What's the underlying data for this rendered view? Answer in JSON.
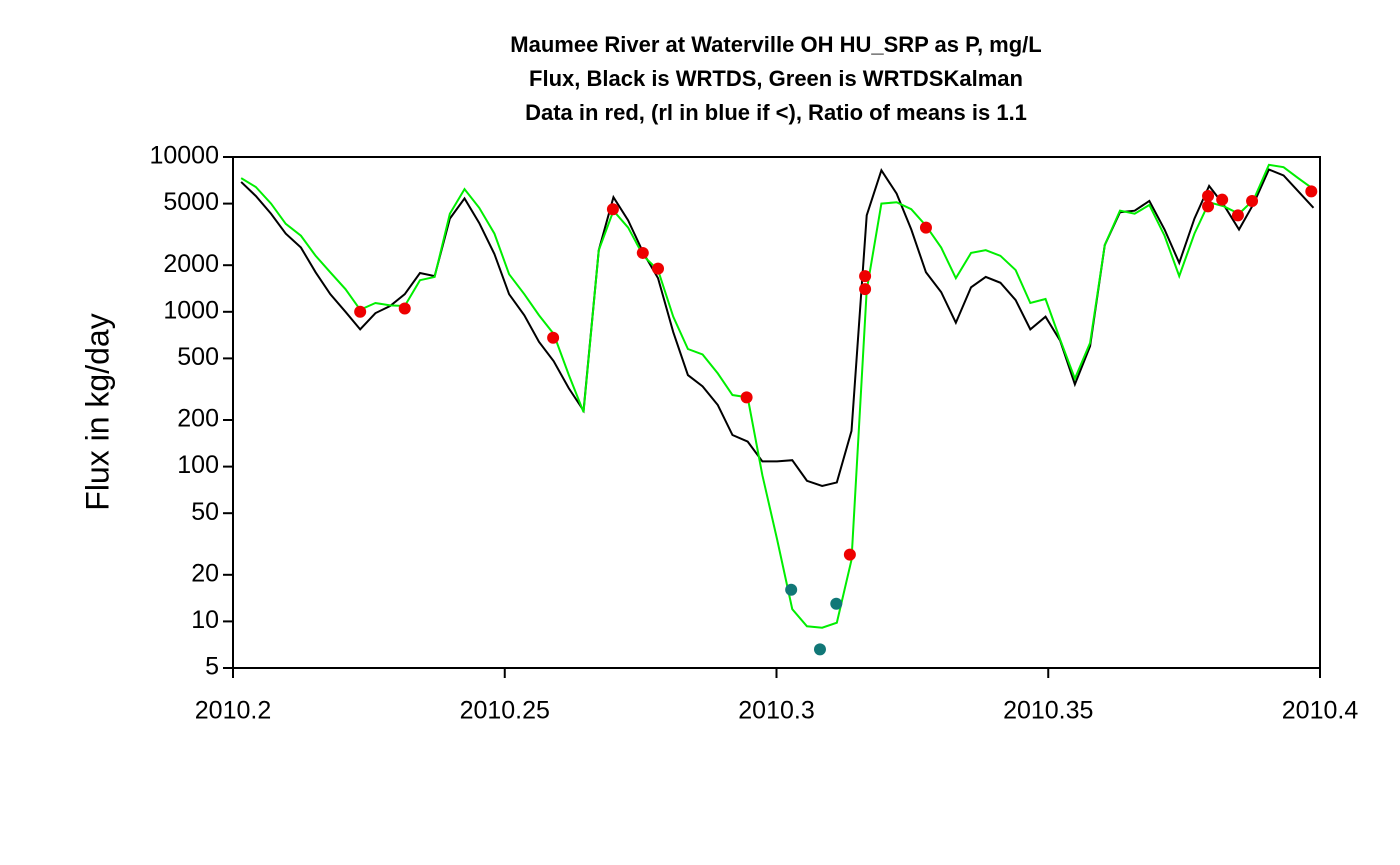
{
  "chart_data": {
    "type": "line",
    "title": [
      "Maumee River at Waterville OH HU_SRP as P, mg/L",
      "Flux, Black is WRTDS, Green is WRTDSKalman",
      "Data in red, (rl in blue if <), Ratio of means is 1.1"
    ],
    "y_label": "Flux in kg/day",
    "ylog": true,
    "xlim": [
      2010.2,
      2010.4
    ],
    "xticks": [
      2010.2,
      2010.25,
      2010.3,
      2010.35,
      2010.4
    ],
    "ylim": [
      5,
      10000
    ],
    "yticks": [
      5,
      10,
      20,
      50,
      100,
      200,
      500,
      1000,
      2000,
      5000,
      10000
    ],
    "series": [
      {
        "name": "WRTDS",
        "type": "line",
        "color": "#000000",
        "x": [
          2010.2015,
          2010.2042,
          2010.207,
          2010.2097,
          2010.2125,
          2010.2152,
          2010.2179,
          2010.2207,
          2010.2234,
          2010.2262,
          2010.2289,
          2010.2316,
          2010.2344,
          2010.2371,
          2010.2399,
          2010.2426,
          2010.2453,
          2010.2481,
          2010.2508,
          2010.2536,
          2010.2563,
          2010.259,
          2010.2618,
          2010.2645,
          2010.2673,
          2010.27,
          2010.2727,
          2010.2755,
          2010.2782,
          2010.281,
          2010.2837,
          2010.2864,
          2010.2892,
          2010.2919,
          2010.2947,
          2010.2974,
          2010.3001,
          2010.3029,
          2010.3056,
          2010.3084,
          2010.3111,
          2010.3138,
          2010.3166,
          2010.3193,
          2010.3221,
          2010.3248,
          2010.3275,
          2010.3303,
          2010.333,
          2010.3358,
          2010.3385,
          2010.3412,
          2010.344,
          2010.3467,
          2010.3495,
          2010.3522,
          2010.3549,
          2010.3577,
          2010.3604,
          2010.3632,
          2010.3659,
          2010.3686,
          2010.3714,
          2010.3741,
          2010.3769,
          2010.3796,
          2010.3823,
          2010.3851,
          2010.3878,
          2010.3906,
          2010.3933,
          2010.396,
          2010.3988
        ],
        "values": [
          6900,
          5600,
          4300,
          3200,
          2600,
          1800,
          1300,
          1000,
          770,
          980,
          1090,
          1300,
          1780,
          1700,
          4000,
          5400,
          3750,
          2360,
          1300,
          950,
          640,
          480,
          320,
          230,
          2500,
          5500,
          3900,
          2400,
          1650,
          740,
          390,
          330,
          250,
          160,
          145,
          108,
          108,
          110,
          81,
          75,
          79,
          170,
          4200,
          8200,
          5800,
          3400,
          1800,
          1340,
          850,
          1440,
          1680,
          1540,
          1190,
          770,
          930,
          650,
          340,
          600,
          2700,
          4400,
          4500,
          5200,
          3400,
          2070,
          4000,
          6500,
          4900,
          3400,
          5000,
          8300,
          7600,
          6000,
          4700
        ]
      },
      {
        "name": "WRTDSKalman",
        "type": "line",
        "color": "#00ee00",
        "x": [
          2010.2015,
          2010.2042,
          2010.207,
          2010.2097,
          2010.2125,
          2010.2152,
          2010.2179,
          2010.2207,
          2010.2234,
          2010.2262,
          2010.2289,
          2010.2316,
          2010.2344,
          2010.2371,
          2010.2399,
          2010.2426,
          2010.2453,
          2010.2481,
          2010.2508,
          2010.2536,
          2010.2563,
          2010.259,
          2010.2618,
          2010.2645,
          2010.2673,
          2010.27,
          2010.2727,
          2010.2755,
          2010.2782,
          2010.281,
          2010.2837,
          2010.2864,
          2010.2892,
          2010.2919,
          2010.2947,
          2010.2974,
          2010.3001,
          2010.3029,
          2010.3056,
          2010.3084,
          2010.3111,
          2010.3138,
          2010.3166,
          2010.3193,
          2010.3221,
          2010.3248,
          2010.3275,
          2010.3303,
          2010.333,
          2010.3358,
          2010.3385,
          2010.3412,
          2010.344,
          2010.3467,
          2010.3495,
          2010.3522,
          2010.3549,
          2010.3577,
          2010.3604,
          2010.3632,
          2010.3659,
          2010.3686,
          2010.3714,
          2010.3741,
          2010.3769,
          2010.3796,
          2010.3823,
          2010.3851,
          2010.3878,
          2010.3906,
          2010.3933,
          2010.396,
          2010.3988
        ],
        "values": [
          7300,
          6400,
          5000,
          3700,
          3100,
          2300,
          1800,
          1400,
          1030,
          1140,
          1100,
          1090,
          1600,
          1680,
          4300,
          6200,
          4700,
          3200,
          1750,
          1300,
          950,
          720,
          390,
          225,
          2500,
          4500,
          3500,
          2300,
          1860,
          930,
          575,
          530,
          400,
          290,
          280,
          88,
          34,
          12,
          9.3,
          9.1,
          9.8,
          25,
          1380,
          5000,
          5100,
          4600,
          3600,
          2600,
          1650,
          2400,
          2500,
          2300,
          1860,
          1140,
          1210,
          660,
          370,
          630,
          2700,
          4500,
          4300,
          4900,
          3100,
          1700,
          3200,
          5100,
          4800,
          4300,
          5300,
          8900,
          8600,
          7300,
          6200
        ]
      },
      {
        "name": "Data",
        "type": "points",
        "color": "#ee0000",
        "x": [
          2010.2234,
          2010.2316,
          2010.2589,
          2010.2699,
          2010.2754,
          2010.2782,
          2010.2945,
          2010.3135,
          2010.3163,
          2010.3163,
          2010.3275,
          2010.3794,
          2010.3794,
          2010.382,
          2010.3849,
          2010.3875,
          2010.3984
        ],
        "values": [
          1000,
          1050,
          680,
          4600,
          2400,
          1900,
          280,
          27,
          1700,
          1400,
          3500,
          5600,
          4800,
          5300,
          4200,
          5200,
          6000
        ]
      },
      {
        "name": "rl",
        "type": "points",
        "color": "#117777",
        "x": [
          2010.3027,
          2010.308,
          2010.311
        ],
        "values": [
          16,
          6.6,
          13
        ]
      }
    ]
  }
}
